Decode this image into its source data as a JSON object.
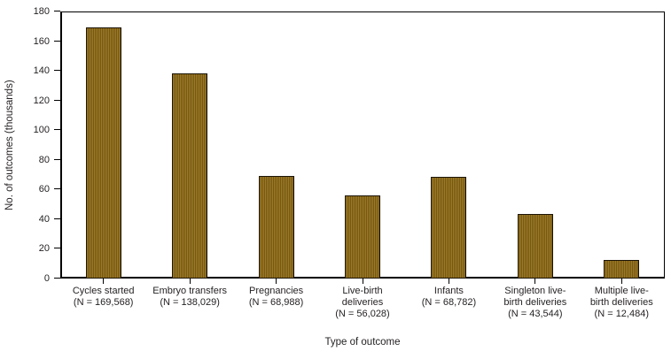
{
  "chart_data": {
    "type": "bar",
    "title": "",
    "xlabel": "Type of outcome",
    "ylabel": "No. of outcomes  (thousands)",
    "ylim": [
      0,
      180
    ],
    "yticks": [
      0,
      20,
      40,
      60,
      80,
      100,
      120,
      140,
      160,
      180
    ],
    "grid": false,
    "legend": false,
    "bar_fill_color": "#8a671c",
    "bar_fill_color_light": "#9c7a28",
    "bar_fill_color_dark": "#755711",
    "bar_border_color": "#1c1405",
    "axis_color": "#000000",
    "text_color": "#231f20",
    "values": [
      169.568,
      138.029,
      68.988,
      56.028,
      68.782,
      43.544,
      12.484
    ],
    "categories": [
      {
        "label_lines": [
          "Cycles started"
        ],
        "n_label": "(N = 169,568)",
        "n": 169568
      },
      {
        "label_lines": [
          "Embryo transfers"
        ],
        "n_label": "(N = 138,029)",
        "n": 138029
      },
      {
        "label_lines": [
          "Pregnancies"
        ],
        "n_label": "(N = 68,988)",
        "n": 68988
      },
      {
        "label_lines": [
          "Live-birth",
          "deliveries"
        ],
        "n_label": "(N = 56,028)",
        "n": 56028
      },
      {
        "label_lines": [
          "Infants"
        ],
        "n_label": "(N = 68,782)",
        "n": 68782
      },
      {
        "label_lines": [
          "Singleton live-",
          "birth deliveries"
        ],
        "n_label": "(N = 43,544)",
        "n": 43544
      },
      {
        "label_lines": [
          "Multiple live-",
          "birth deliveries"
        ],
        "n_label": "(N = 12,484)",
        "n": 12484
      }
    ]
  }
}
